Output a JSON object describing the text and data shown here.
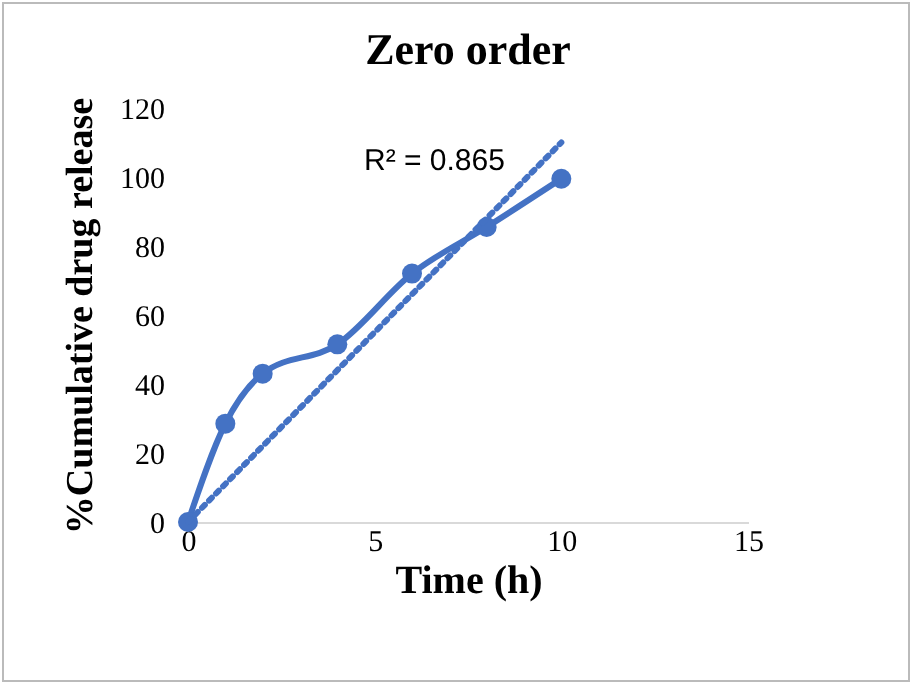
{
  "chart_data": {
    "type": "line",
    "title": "Zero order",
    "xlabel": "Time (h)",
    "ylabel": "%Cumulative drug release",
    "x": [
      0,
      1,
      2,
      4,
      6,
      8,
      10
    ],
    "series": [
      {
        "color": "#4472c4",
        "values": [
          0,
          28.5,
          43,
          51.5,
          72,
          85.5,
          99.5
        ],
        "marker": "circle",
        "line_style": "solid"
      },
      {
        "color": "#4472c4",
        "x": [
          0,
          10
        ],
        "values": [
          0,
          110
        ],
        "marker": "none",
        "line_style": "dotted"
      }
    ],
    "xlim": [
      0,
      15
    ],
    "xticks": [
      0,
      5,
      10,
      15
    ],
    "ylim": [
      0,
      120
    ],
    "yticks": [
      0,
      20,
      40,
      60,
      80,
      100,
      120
    ],
    "grid": false,
    "annotations": [
      "R² = 0.865"
    ]
  }
}
